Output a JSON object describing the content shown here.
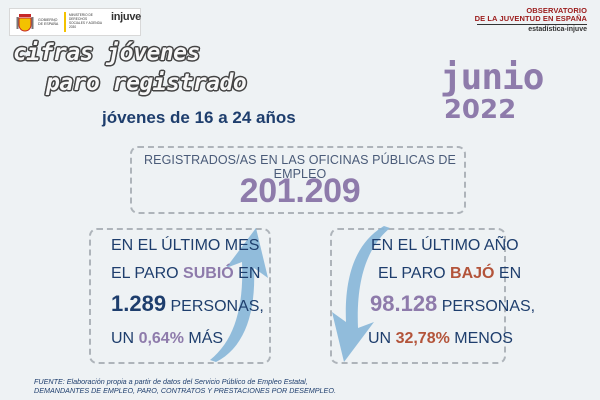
{
  "header": {
    "gov_label": "GOBIERNO DE ESPAÑA",
    "ministry_label": "MINISTERIO DE DERECHOS SOCIALES Y AGENDA 2030",
    "injuve_label": "injuve",
    "observatory_line1": "OBSERVATORIO",
    "observatory_line2": "DE LA JUVENTUD EN ESPAÑA",
    "observatory_sub": "estadística-injuve"
  },
  "headline": {
    "line1": "cifras jóvenes",
    "line2": "paro registrado",
    "subtitle": "jóvenes de 16 a 24 años"
  },
  "period": {
    "month": "junio",
    "year": "2022"
  },
  "total": {
    "label": "REGISTRADOS/AS EN LAS OFICINAS PÚBLICAS DE EMPLEO",
    "value": "201.209"
  },
  "monthly": {
    "line1": "EN EL ÚLTIMO MES",
    "line2_prefix": "EL PARO ",
    "line2_verb": "SUBIÓ",
    "line2_suffix": " EN",
    "line3_number": "1.289",
    "line3_suffix": " PERSONAS,",
    "line4_prefix": "UN ",
    "line4_percent": "0,64%",
    "line4_suffix": " MÁS"
  },
  "yearly": {
    "line1": "EN EL ÚLTIMO AÑO",
    "line2_prefix": "EL PARO ",
    "line2_verb": "BAJÓ",
    "line2_suffix": " EN",
    "line3_number": "98.128",
    "line3_suffix": " PERSONAS,",
    "line4_prefix": "UN ",
    "line4_percent": "32,78%",
    "line4_suffix": " MENOS"
  },
  "source": {
    "line1": "FUENTE: Elaboración propia a partir de datos del Servicio Público de Empleo Estatal,",
    "line2": "DEMANDANTES DE EMPLEO, PARO, CONTRATOS Y PRESTACIONES POR DESEMPLEO."
  },
  "colors": {
    "navy": "#1e3e6d",
    "purple": "#8e7bab",
    "orange": "#b3543a",
    "arrow_blue": "#86b6d8",
    "observatory_red": "#9b1b1b"
  }
}
